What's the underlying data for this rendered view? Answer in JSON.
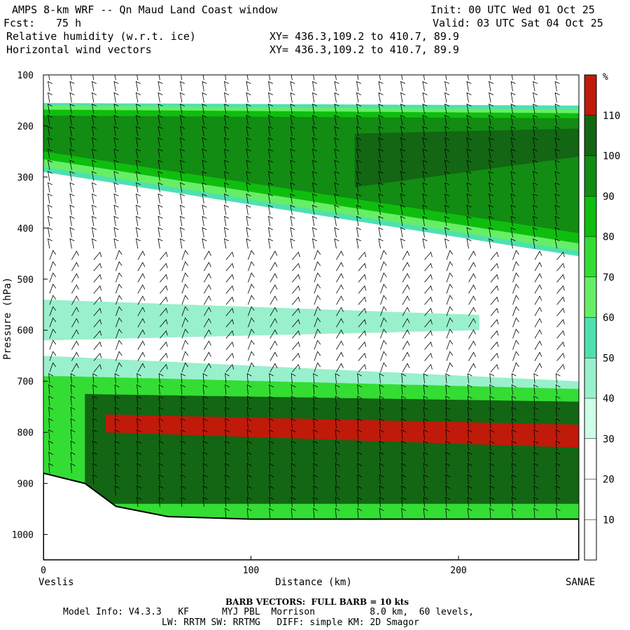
{
  "header": {
    "title": "AMPS 8-km WRF -- Qn Maud Land Coast window",
    "fcst_label": "Fcst:",
    "fcst_value": "75 h",
    "init": "Init: 00 UTC Wed 01 Oct 25",
    "valid": "Valid: 03 UTC Sat 04 Oct 25",
    "field1": "Relative humidity (w.r.t. ice)",
    "field2": "Horizontal wind vectors",
    "xy1": "XY= 436.3,109.2 to 410.7, 89.9",
    "xy2": "XY= 436.3,109.2 to 410.7, 89.9"
  },
  "footer": {
    "barb_note": "BARB VECTORS:  FULL BARB = 10 kts",
    "model_info": "Model Info: V4.3.3   KF      MYJ PBL  Morrison          8.0 km,  60 levels,",
    "physics": "LW: RRTM SW: RRTMG   DIFF: simple KM: 2D Smagor"
  },
  "colors": {
    "c0": "#ffffff",
    "c10": "#ffffff",
    "c20": "#ffffff",
    "c30": "#ccffe6",
    "c40": "#99f0cc",
    "c50": "#4fe0b0",
    "c60": "#66ee66",
    "c70": "#33dd33",
    "c80": "#0fbd0f",
    "c90": "#128c12",
    "c100": "#136613",
    "c110": "#3a5a10",
    "c120": "#c01a0a"
  },
  "chart_data": {
    "type": "heatmap",
    "title": "Relative humidity (w.r.t. ice) and horizontal wind vectors cross-section",
    "xlabel": "Distance (km)",
    "ylabel": "Pressure (hPa)",
    "x_range": [
      0,
      258
    ],
    "y_range": [
      100,
      1050
    ],
    "y_inverted": true,
    "x_ticks": [
      0,
      100,
      200
    ],
    "x_tick_labels": [
      "0",
      "100",
      "200"
    ],
    "y_ticks": [
      100,
      200,
      300,
      400,
      500,
      600,
      700,
      800,
      900,
      1000
    ],
    "y_tick_labels": [
      "100",
      "200",
      "300",
      "400",
      "500",
      "600",
      "700",
      "800",
      "900",
      "1000"
    ],
    "left_endpoint": "Veslis",
    "right_endpoint": "SANAE",
    "colorbar": {
      "unit": "%",
      "levels": [
        10,
        20,
        30,
        40,
        50,
        60,
        70,
        80,
        90,
        100,
        110
      ],
      "labels": [
        "10",
        "20",
        "30",
        "40",
        "50",
        "60",
        "70",
        "80",
        "90",
        "100",
        "110"
      ]
    },
    "layers": [
      {
        "name": "upper-moist-edge",
        "rh": 50,
        "top": [
          [
            0,
            155
          ],
          [
            258,
            160
          ]
        ],
        "bottom": [
          [
            0,
            290
          ],
          [
            258,
            455
          ]
        ]
      },
      {
        "name": "upper-edge-60",
        "rh": 65,
        "top": [
          [
            0,
            160
          ],
          [
            258,
            168
          ]
        ],
        "bottom": [
          [
            0,
            280
          ],
          [
            258,
            445
          ]
        ]
      },
      {
        "name": "upper-green-80",
        "rh": 80,
        "top": [
          [
            0,
            168
          ],
          [
            258,
            175
          ]
        ],
        "bottom": [
          [
            0,
            265
          ],
          [
            258,
            430
          ]
        ]
      },
      {
        "name": "upper-dark-90",
        "rh": 95,
        "top": [
          [
            0,
            180
          ],
          [
            258,
            185
          ]
        ],
        "bottom": [
          [
            0,
            250
          ],
          [
            258,
            410
          ]
        ]
      },
      {
        "name": "upper-olive-100",
        "rh": 105,
        "top": [
          [
            150,
            215
          ],
          [
            258,
            205
          ]
        ],
        "bottom": [
          [
            150,
            320
          ],
          [
            258,
            260
          ]
        ]
      },
      {
        "name": "mid-moist-band",
        "rh": 45,
        "top": [
          [
            0,
            540
          ],
          [
            210,
            570
          ]
        ],
        "bottom": [
          [
            0,
            620
          ],
          [
            210,
            600
          ]
        ]
      },
      {
        "name": "low-level-edge",
        "rh": 40,
        "top": [
          [
            0,
            650
          ],
          [
            258,
            700
          ]
        ],
        "bottom": [
          [
            0,
            980
          ],
          [
            258,
            980
          ]
        ]
      },
      {
        "name": "low-level-green",
        "rh": 75,
        "top": [
          [
            10,
            690
          ],
          [
            258,
            715
          ]
        ],
        "bottom": [
          [
            0,
            980
          ],
          [
            258,
            980
          ]
        ]
      },
      {
        "name": "low-level-olive",
        "rh": 105,
        "top": [
          [
            20,
            725
          ],
          [
            258,
            740
          ]
        ],
        "bottom": [
          [
            20,
            940
          ],
          [
            258,
            940
          ]
        ]
      },
      {
        "name": "low-level-red",
        "rh": 115,
        "top": [
          [
            30,
            765
          ],
          [
            258,
            785
          ]
        ],
        "bottom": [
          [
            30,
            800
          ],
          [
            258,
            830
          ]
        ]
      }
    ],
    "terrain_surface": [
      [
        0,
        880
      ],
      [
        20,
        900
      ],
      [
        35,
        945
      ],
      [
        60,
        965
      ],
      [
        100,
        970
      ],
      [
        258,
        970
      ]
    ]
  }
}
